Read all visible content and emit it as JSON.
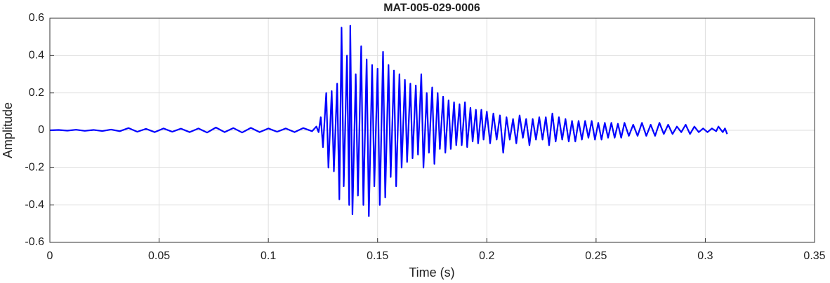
{
  "chart_data": {
    "type": "line",
    "title": "MAT-005-029-0006",
    "x_label": "Time (s)",
    "y_label": "Amplitude",
    "color": "#0000ff",
    "grid": true,
    "xlim": [
      0,
      0.35
    ],
    "xticks": [
      0,
      0.05,
      0.1,
      0.15,
      0.2,
      0.25,
      0.3,
      0.35
    ],
    "ylim": [
      -0.6,
      0.6
    ],
    "yticks": [
      -0.6,
      -0.4,
      -0.2,
      0,
      0.2,
      0.4,
      0.6
    ],
    "x": [
      0,
      0.004,
      0.008,
      0.012,
      0.016,
      0.02,
      0.024,
      0.028,
      0.032,
      0.036,
      0.04,
      0.044,
      0.048,
      0.052,
      0.056,
      0.06,
      0.064,
      0.068,
      0.072,
      0.076,
      0.08,
      0.084,
      0.088,
      0.092,
      0.096,
      0.1,
      0.104,
      0.108,
      0.112,
      0.116,
      0.12,
      0.122,
      0.123,
      0.124,
      0.125,
      0.1265,
      0.1275,
      0.129,
      0.13,
      0.1315,
      0.1325,
      0.1335,
      0.1345,
      0.136,
      0.137,
      0.1375,
      0.1385,
      0.14,
      0.141,
      0.1425,
      0.1435,
      0.145,
      0.146,
      0.1475,
      0.1485,
      0.15,
      0.151,
      0.1525,
      0.1535,
      0.155,
      0.156,
      0.1575,
      0.1585,
      0.16,
      0.161,
      0.1625,
      0.1635,
      0.165,
      0.166,
      0.1675,
      0.1685,
      0.17,
      0.171,
      0.1725,
      0.1735,
      0.175,
      0.176,
      0.1775,
      0.1785,
      0.18,
      0.181,
      0.1825,
      0.1835,
      0.185,
      0.186,
      0.1875,
      0.1885,
      0.19,
      0.191,
      0.1925,
      0.1935,
      0.195,
      0.196,
      0.1975,
      0.1985,
      0.2,
      0.2015,
      0.203,
      0.2045,
      0.206,
      0.2075,
      0.209,
      0.2105,
      0.212,
      0.2135,
      0.215,
      0.2165,
      0.218,
      0.2195,
      0.221,
      0.2225,
      0.224,
      0.2255,
      0.227,
      0.2285,
      0.23,
      0.2315,
      0.233,
      0.2345,
      0.236,
      0.2375,
      0.239,
      0.2405,
      0.242,
      0.2435,
      0.245,
      0.2465,
      0.248,
      0.2495,
      0.251,
      0.2525,
      0.254,
      0.2555,
      0.257,
      0.2585,
      0.26,
      0.2615,
      0.263,
      0.265,
      0.267,
      0.269,
      0.271,
      0.273,
      0.275,
      0.277,
      0.279,
      0.281,
      0.283,
      0.285,
      0.287,
      0.289,
      0.291,
      0.293,
      0.295,
      0.297,
      0.299,
      0.301,
      0.303,
      0.305,
      0.306,
      0.308,
      0.309,
      0.31
    ],
    "values": [
      0,
      0.002,
      -0.002,
      0.003,
      -0.003,
      0.002,
      -0.004,
      0.004,
      -0.005,
      0.012,
      -0.008,
      0.008,
      -0.01,
      0.01,
      -0.008,
      0.009,
      -0.01,
      0.01,
      -0.012,
      0.015,
      -0.01,
      0.012,
      -0.012,
      0.013,
      -0.01,
      0.01,
      -0.008,
      0.01,
      -0.01,
      0.012,
      -0.005,
      0.02,
      -0.01,
      0.07,
      -0.09,
      0.2,
      -0.2,
      0.21,
      -0.22,
      0.25,
      -0.37,
      0.55,
      -0.3,
      0.4,
      -0.4,
      0.56,
      -0.45,
      0.3,
      -0.35,
      0.45,
      -0.4,
      0.38,
      -0.46,
      0.35,
      -0.3,
      0.33,
      -0.4,
      0.42,
      -0.36,
      0.35,
      -0.25,
      0.32,
      -0.3,
      0.3,
      -0.2,
      0.27,
      -0.17,
      0.25,
      -0.15,
      0.24,
      -0.13,
      0.3,
      -0.2,
      0.2,
      -0.12,
      0.23,
      -0.18,
      0.2,
      -0.1,
      0.18,
      -0.12,
      0.16,
      -0.1,
      0.15,
      -0.08,
      0.14,
      -0.08,
      0.15,
      -0.09,
      0.12,
      -0.06,
      0.11,
      -0.07,
      0.11,
      -0.05,
      0.1,
      -0.07,
      0.09,
      -0.05,
      0.08,
      -0.12,
      0.07,
      -0.05,
      0.06,
      -0.07,
      0.08,
      -0.04,
      0.06,
      -0.08,
      0.06,
      -0.05,
      0.07,
      -0.05,
      0.07,
      -0.08,
      0.09,
      -0.06,
      0.07,
      -0.05,
      0.06,
      -0.06,
      0.05,
      -0.06,
      0.05,
      -0.05,
      0.05,
      -0.04,
      0.05,
      -0.05,
      0.04,
      -0.05,
      0.04,
      -0.04,
      0.04,
      -0.04,
      0.035,
      -0.04,
      0.04,
      -0.03,
      0.03,
      -0.03,
      0.04,
      -0.03,
      0.03,
      -0.03,
      0.04,
      -0.02,
      0.03,
      -0.02,
      0.02,
      -0.01,
      0.03,
      -0.02,
      0.02,
      -0.01,
      0.01,
      -0.01,
      0.01,
      -0.005,
      0.02,
      -0.01,
      0.01,
      -0.02
    ]
  }
}
